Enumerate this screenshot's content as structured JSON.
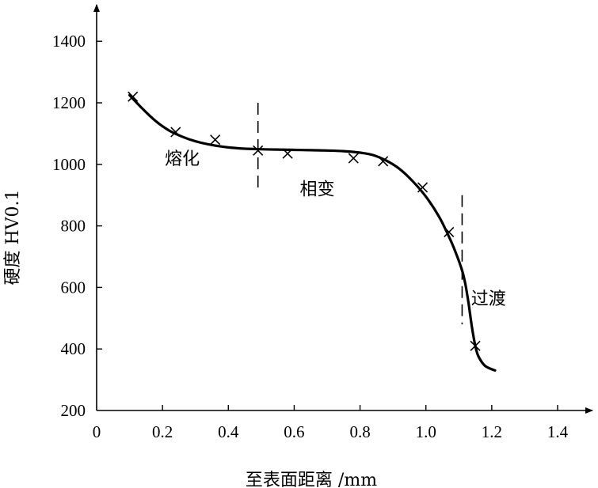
{
  "chart_data": {
    "type": "scatter",
    "xlabel": "至表面距离 /mm",
    "ylabel": "硬度 HV0.1",
    "xlim": [
      0,
      1.4
    ],
    "ylim": [
      200,
      1400
    ],
    "x_ticks": [
      "0",
      "0.2",
      "0.4",
      "0.6",
      "0.8",
      "1.0",
      "1.2",
      "1.4"
    ],
    "y_ticks": [
      "200",
      "400",
      "600",
      "800",
      "1000",
      "1200",
      "1400"
    ],
    "grid": false,
    "legend": "none",
    "series": [
      {
        "marker": "x",
        "x": [
          0.11,
          0.24,
          0.36,
          0.49,
          0.58,
          0.78,
          0.87,
          0.99,
          1.07,
          1.15
        ],
        "y": [
          1220,
          1105,
          1080,
          1045,
          1035,
          1020,
          1010,
          925,
          780,
          410
        ]
      }
    ],
    "trend_curve": {
      "x": [
        0.1,
        0.14,
        0.18,
        0.22,
        0.26,
        0.3,
        0.35,
        0.4,
        0.45,
        0.5,
        0.55,
        0.6,
        0.65,
        0.7,
        0.75,
        0.8,
        0.84,
        0.88,
        0.92,
        0.96,
        1.0,
        1.04,
        1.07,
        1.09,
        1.11,
        1.12,
        1.13,
        1.14,
        1.15,
        1.16,
        1.18,
        1.21
      ],
      "y": [
        1225,
        1180,
        1140,
        1110,
        1090,
        1075,
        1063,
        1055,
        1051,
        1049,
        1048,
        1047,
        1046,
        1045,
        1043,
        1038,
        1030,
        1012,
        985,
        945,
        895,
        830,
        765,
        715,
        655,
        610,
        545,
        470,
        410,
        375,
        345,
        330
      ]
    },
    "zone_boundaries": [
      {
        "x": 0.49,
        "y_from": 910,
        "y_to": 1200
      },
      {
        "x": 1.11,
        "y_from": 480,
        "y_to": 900
      }
    ],
    "annotations": [
      {
        "text": "熔化",
        "x": 0.26,
        "y": 1000
      },
      {
        "text": "相变",
        "x": 0.67,
        "y": 900
      },
      {
        "text": "过渡",
        "x": 1.19,
        "y": 545
      }
    ]
  }
}
